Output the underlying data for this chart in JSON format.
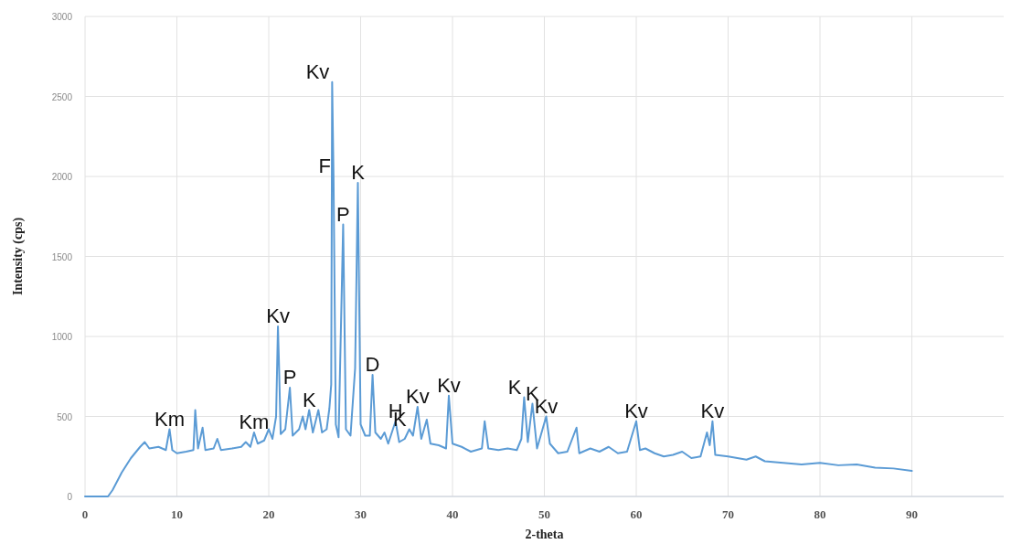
{
  "chart_data": {
    "type": "line",
    "xlabel": "2-theta",
    "ylabel": "Intensity (cps)",
    "xlim": [
      0,
      100
    ],
    "xticks": [
      0,
      10,
      20,
      30,
      40,
      50,
      60,
      70,
      80,
      90
    ],
    "ylim": [
      0,
      3000
    ],
    "yticks": [
      0,
      500,
      1000,
      1500,
      2000,
      2500,
      3000
    ],
    "grid": true,
    "marker": "none",
    "line_style": "solid",
    "series": [
      {
        "color": "#5b9bd5",
        "x": [
          0,
          2.5,
          3,
          4,
          5,
          6,
          6.5,
          7,
          8,
          8.8,
          9.2,
          9.5,
          10,
          11,
          11.8,
          12,
          12.3,
          12.8,
          13.1,
          14,
          14.4,
          14.8,
          16,
          17,
          17.5,
          18,
          18.4,
          18.8,
          19.5,
          20,
          20.4,
          20.8,
          21,
          21.1,
          21.3,
          21.8,
          22.3,
          22.6,
          23.3,
          23.7,
          24,
          24.4,
          24.8,
          25.4,
          25.8,
          26.3,
          26.6,
          26.8,
          26.9,
          27.05,
          27.3,
          27.6,
          28.1,
          28.4,
          28.9,
          29.4,
          29.7,
          30,
          30.5,
          31,
          31.3,
          31.6,
          32.2,
          32.6,
          33,
          33.8,
          34.2,
          34.8,
          35.3,
          35.7,
          36.2,
          36.6,
          37.2,
          37.6,
          38.5,
          39.3,
          39.6,
          40,
          41,
          42,
          43.2,
          43.5,
          43.9,
          45,
          46,
          47,
          47.5,
          47.8,
          48.2,
          48.7,
          49.2,
          50.2,
          50.6,
          51.5,
          52.5,
          53.5,
          53.8,
          55,
          56,
          57,
          58,
          59,
          60,
          60.4,
          61,
          62,
          63,
          64,
          65,
          66,
          67,
          67.7,
          68,
          68.3,
          68.6,
          70,
          72,
          73,
          74,
          76,
          78,
          80,
          82,
          84,
          86,
          88,
          90
        ],
        "values": [
          0,
          0,
          40,
          150,
          240,
          310,
          340,
          300,
          310,
          290,
          420,
          290,
          270,
          280,
          290,
          540,
          300,
          430,
          290,
          300,
          360,
          290,
          300,
          310,
          340,
          310,
          400,
          330,
          350,
          420,
          360,
          500,
          1063,
          860,
          390,
          420,
          680,
          380,
          420,
          500,
          420,
          540,
          400,
          540,
          400,
          420,
          550,
          700,
          2590,
          2000,
          450,
          370,
          1700,
          420,
          380,
          800,
          1960,
          450,
          380,
          380,
          760,
          400,
          360,
          400,
          330,
          470,
          340,
          360,
          420,
          380,
          560,
          360,
          480,
          330,
          320,
          300,
          630,
          330,
          310,
          280,
          300,
          470,
          300,
          290,
          300,
          290,
          360,
          620,
          340,
          580,
          300,
          500,
          330,
          270,
          280,
          430,
          270,
          300,
          280,
          310,
          270,
          280,
          470,
          290,
          300,
          270,
          250,
          260,
          280,
          240,
          250,
          400,
          320,
          470,
          260,
          250,
          230,
          250,
          220,
          210,
          200,
          210,
          195,
          200,
          180,
          175,
          160
        ]
      }
    ],
    "annotations": [
      {
        "text": "Km",
        "x": 9.2,
        "y": 420
      },
      {
        "text": "Km",
        "x": 18.4,
        "y": 400
      },
      {
        "text": "Kv",
        "x": 21,
        "y": 1063
      },
      {
        "text": "P",
        "x": 22.3,
        "y": 680
      },
      {
        "text": "K",
        "x": 24.4,
        "y": 540
      },
      {
        "text": "Kv",
        "x": 26.9,
        "y": 2590
      },
      {
        "text": "F",
        "x": 27.05,
        "y": 2000
      },
      {
        "text": "P",
        "x": 28.1,
        "y": 1700
      },
      {
        "text": "K",
        "x": 29.7,
        "y": 1960
      },
      {
        "text": "D",
        "x": 31.3,
        "y": 760
      },
      {
        "text": "H",
        "x": 33.8,
        "y": 470
      },
      {
        "text": "K",
        "x": 35.3,
        "y": 420
      },
      {
        "text": "Kv",
        "x": 36.2,
        "y": 560
      },
      {
        "text": "Kv",
        "x": 39.6,
        "y": 630
      },
      {
        "text": "K",
        "x": 47.8,
        "y": 620
      },
      {
        "text": "K",
        "x": 48.7,
        "y": 580
      },
      {
        "text": "Kv",
        "x": 50.2,
        "y": 500
      },
      {
        "text": "Kv",
        "x": 60,
        "y": 470
      },
      {
        "text": "Kv",
        "x": 68.3,
        "y": 470
      }
    ]
  }
}
